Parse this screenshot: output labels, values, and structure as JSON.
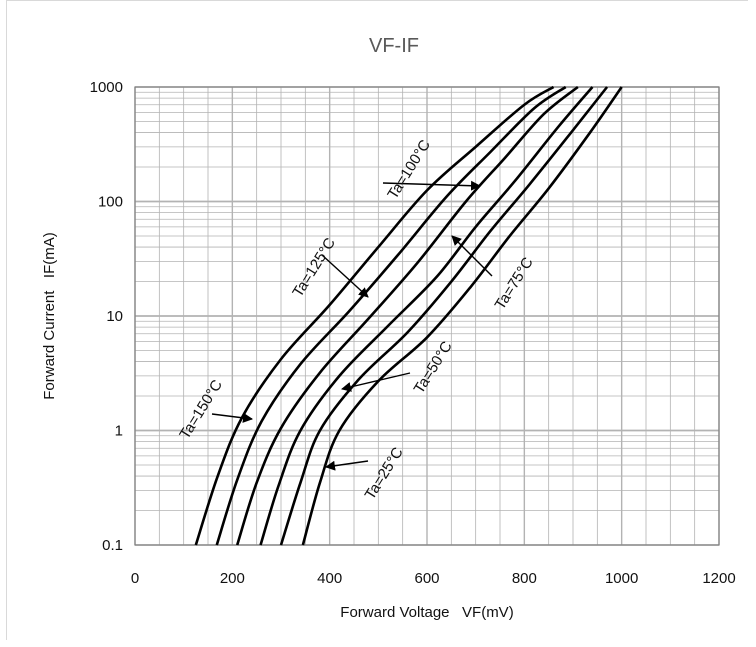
{
  "chart_data": {
    "type": "line",
    "title": "VF-IF",
    "xlabel": "Forward Voltage   VF(mV)",
    "ylabel": "Forward Current   IF(mA)",
    "xlim": [
      0,
      1200
    ],
    "ylim": [
      0.1,
      1000
    ],
    "yscale": "log",
    "grid": true,
    "x_ticks": [
      "0",
      "200",
      "400",
      "600",
      "800",
      "1000",
      "1200"
    ],
    "y_ticks": [
      "0.1",
      "1",
      "10",
      "100",
      "1000"
    ],
    "series": [
      {
        "name": "Ta=150°C",
        "x": [
          125,
          170,
          220,
          300,
          400,
          500,
          600,
          700,
          800,
          860
        ],
        "y": [
          0.1,
          0.4,
          1.3,
          4.2,
          12.5,
          40,
          125,
          300,
          700,
          1000
        ]
      },
      {
        "name": "Ta=125°C",
        "x": [
          168,
          210,
          260,
          340,
          440,
          540,
          640,
          730,
          820,
          885
        ],
        "y": [
          0.1,
          0.37,
          1.2,
          3.8,
          11,
          34,
          110,
          270,
          650,
          1000
        ]
      },
      {
        "name": "Ta=100°C",
        "x": [
          210,
          250,
          300,
          380,
          480,
          580,
          680,
          760,
          840,
          910
        ],
        "y": [
          0.1,
          0.35,
          1.05,
          3.2,
          9.5,
          29,
          100,
          240,
          580,
          1000
        ]
      },
      {
        "name": "Ta=75°C",
        "x": [
          258,
          295,
          340,
          420,
          520,
          620,
          700,
          780,
          870,
          940
        ],
        "y": [
          0.1,
          0.33,
          1.0,
          3.0,
          8.2,
          22,
          60,
          150,
          450,
          1000
        ]
      },
      {
        "name": "Ta=50°C",
        "x": [
          300,
          340,
          380,
          460,
          560,
          650,
          730,
          810,
          900,
          970
        ],
        "y": [
          0.1,
          0.35,
          1.0,
          2.8,
          7.2,
          20,
          55,
          140,
          420,
          1000
        ]
      },
      {
        "name": "Ta=25°C",
        "x": [
          345,
          380,
          420,
          500,
          600,
          690,
          770,
          850,
          935,
          1000
        ],
        "y": [
          0.1,
          0.35,
          1.0,
          2.7,
          6.5,
          18,
          50,
          130,
          400,
          1000
        ]
      }
    ],
    "annotations": [
      {
        "text": "Ta=150°C",
        "target": "Ta=150°C"
      },
      {
        "text": "Ta=125°C",
        "target": "Ta=125°C"
      },
      {
        "text": "Ta=100°C",
        "target": "Ta=100°C"
      },
      {
        "text": "Ta=75°C",
        "target": "Ta=75°C"
      },
      {
        "text": "Ta=50°C",
        "target": "Ta=50°C"
      },
      {
        "text": "Ta=25°C",
        "target": "Ta=25°C"
      }
    ],
    "colors": {
      "line": "#000000",
      "grid": "#b3b3b3",
      "title": "#595959"
    }
  }
}
